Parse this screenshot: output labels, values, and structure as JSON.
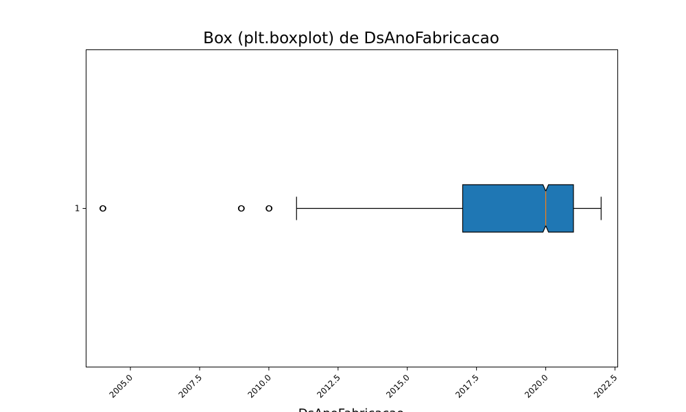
{
  "chart_data": {
    "type": "boxplot",
    "orientation": "horizontal",
    "notched": true,
    "title": "Box (plt.boxplot) de DsAnoFabricacao",
    "xlabel": "DsAnoFabricacao",
    "ylabel": "",
    "xlim": [
      2003.4,
      2022.6
    ],
    "xticks": [
      2005.0,
      2007.5,
      2010.0,
      2012.5,
      2015.0,
      2017.5,
      2020.0,
      2022.5
    ],
    "xtick_labels": [
      "2005.0",
      "2007.5",
      "2010.0",
      "2012.5",
      "2015.0",
      "2017.5",
      "2020.0",
      "2022.5"
    ],
    "yticks": [
      "1"
    ],
    "grid": false,
    "boxes": [
      {
        "label": "1",
        "q1": 2017,
        "median": 2020,
        "q3": 2021,
        "whisker_low": 2011,
        "whisker_high": 2022,
        "notch_low": 2019.9,
        "notch_high": 2020.1,
        "outliers": [
          2004,
          2009,
          2010
        ]
      }
    ],
    "colors": {
      "box_fill": "#1f77b4",
      "median": "#ff7f0e",
      "line": "#000000"
    }
  }
}
